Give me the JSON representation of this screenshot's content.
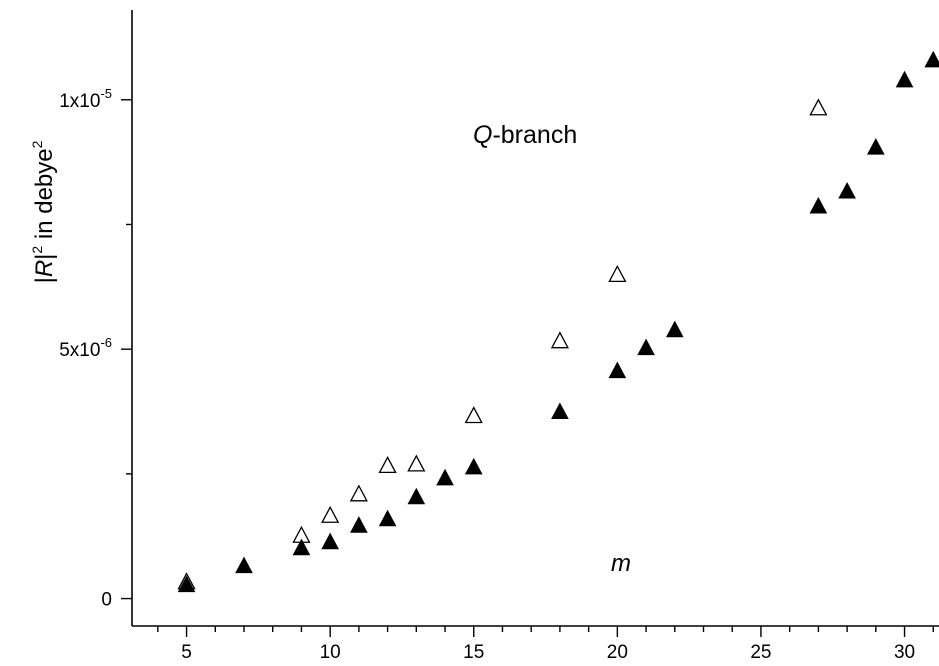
{
  "chart_data": {
    "type": "scatter",
    "title": "",
    "xlabel": "m",
    "ylabel_parts": [
      "|",
      "R",
      "|",
      "2",
      " in debye",
      "2"
    ],
    "annotation_parts": [
      "Q",
      "-branch"
    ],
    "xlim": [
      3.1,
      31.2
    ],
    "ylim": [
      -5.5e-07,
      1.18e-05
    ],
    "x_ticks": [
      {
        "value": 5,
        "label": "5"
      },
      {
        "value": 10,
        "label": "10"
      },
      {
        "value": 15,
        "label": "15"
      },
      {
        "value": 20,
        "label": "20"
      },
      {
        "value": 25,
        "label": "25"
      },
      {
        "value": 30,
        "label": "30"
      }
    ],
    "y_ticks": [
      {
        "value": 0,
        "base": "0",
        "exp": ""
      },
      {
        "value": 5e-06,
        "base": "5x10",
        "exp": "-6"
      },
      {
        "value": 1e-05,
        "base": "1x10",
        "exp": "-5"
      }
    ],
    "grid": false,
    "series": [
      {
        "marker": "triangle-open",
        "color": "#000000",
        "x": [
          5,
          9,
          10,
          11,
          12,
          13,
          15,
          18,
          20,
          27
        ],
        "y": [
          3.2e-07,
          1.25e-06,
          1.65e-06,
          2.08e-06,
          2.65e-06,
          2.68e-06,
          3.65e-06,
          5.15e-06,
          6.48e-06,
          9.82e-06
        ]
      },
      {
        "marker": "triangle-filled",
        "color": "#000000",
        "x": [
          5,
          7,
          9,
          10,
          11,
          12,
          13,
          14,
          15,
          18,
          20,
          21,
          22,
          27,
          28,
          29,
          30,
          31
        ],
        "y": [
          2.6e-07,
          6.4e-07,
          1e-06,
          1.12e-06,
          1.45e-06,
          1.58e-06,
          2.02e-06,
          2.4e-06,
          2.62e-06,
          3.73e-06,
          4.55e-06,
          5.01e-06,
          5.37e-06,
          7.85e-06,
          8.15e-06,
          9.03e-06,
          1.038e-05,
          1.078e-05
        ]
      }
    ]
  }
}
